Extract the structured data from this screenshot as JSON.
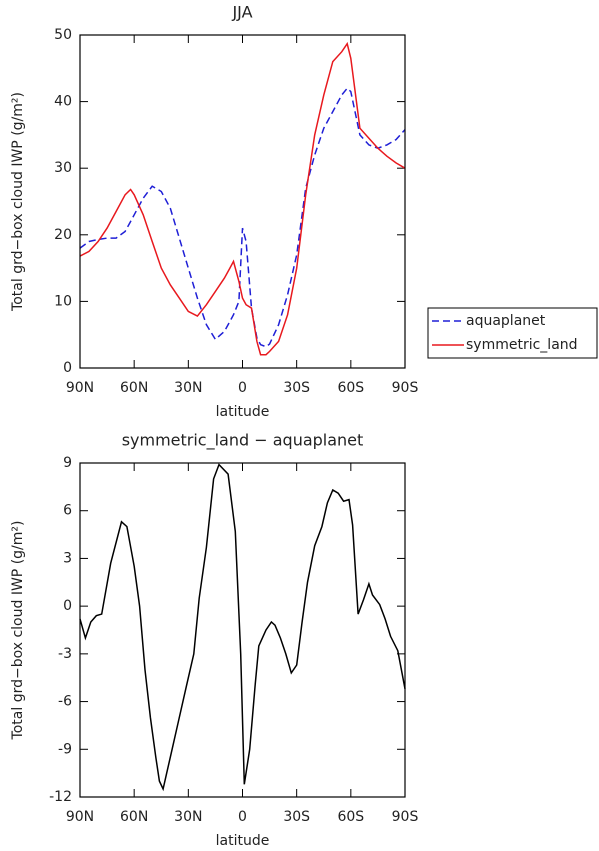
{
  "chart_data": [
    {
      "type": "line",
      "title": "JJA",
      "xlabel": "latitude",
      "ylabel": "Total grd−box cloud IWP (g/m²)",
      "x": [
        90,
        85,
        80,
        75,
        70,
        65,
        62,
        60,
        55,
        50,
        45,
        40,
        35,
        30,
        25,
        20,
        15,
        10,
        7,
        5,
        2,
        0,
        -2,
        -5,
        -8,
        -10,
        -13,
        -15,
        -20,
        -25,
        -30,
        -35,
        -40,
        -45,
        -50,
        -55,
        -58,
        -60,
        -65,
        -70,
        -75,
        -80,
        -85,
        -90
      ],
      "series": [
        {
          "name": "aquaplanet",
          "color": "#1f1fd6",
          "linestyle": "dashed",
          "values": [
            18,
            19,
            19.3,
            19.5,
            19.5,
            20.5,
            22,
            23,
            25.5,
            27.3,
            26.5,
            24,
            19.5,
            15,
            10.5,
            6.5,
            4.3,
            5.5,
            7,
            8,
            10,
            21,
            19,
            9,
            4.5,
            3.5,
            3.2,
            3.6,
            6.5,
            11,
            17,
            27,
            32,
            36,
            38.5,
            41,
            42,
            41.5,
            35,
            33.5,
            33,
            33.5,
            34.3,
            35.8
          ]
        },
        {
          "name": "symmetric_land",
          "color": "#e8191e",
          "linestyle": "solid",
          "values": [
            16.8,
            17.5,
            19,
            21,
            23.5,
            26,
            26.8,
            26,
            23,
            19,
            15,
            12.5,
            10.5,
            8.5,
            7.8,
            9.5,
            11.5,
            13.5,
            15,
            16,
            13,
            10.5,
            9.5,
            9,
            4,
            2,
            2,
            2.5,
            4,
            8,
            15,
            26,
            35,
            41,
            46,
            47.5,
            48.7,
            46.5,
            36,
            34.5,
            33,
            31.8,
            30.8,
            30
          ]
        }
      ],
      "xlim": [
        90,
        -90
      ],
      "xticks": [
        {
          "value": 90,
          "label": "90N"
        },
        {
          "value": 60,
          "label": "60N"
        },
        {
          "value": 30,
          "label": "30N"
        },
        0,
        {
          "value": -30,
          "label": "30S"
        },
        {
          "value": -60,
          "label": "60S"
        },
        {
          "value": -90,
          "label": "90S"
        }
      ],
      "ylim": [
        0,
        50
      ],
      "yticks": [
        0,
        10,
        20,
        30,
        40,
        50
      ],
      "legend": "right"
    },
    {
      "type": "line",
      "title": "symmetric_land − aquaplanet",
      "xlabel": "latitude",
      "ylabel": "Total grd−box cloud IWP (g/m²)",
      "x": [
        90,
        87,
        84,
        81,
        78,
        73,
        67,
        64,
        60,
        57,
        54,
        51,
        48,
        46,
        44,
        42,
        39,
        35,
        31,
        27,
        24,
        20,
        16,
        13,
        8,
        4,
        1,
        -1,
        -4,
        -7,
        -9,
        -13,
        -16,
        -18,
        -21,
        -24,
        -27,
        -30,
        -33,
        -36,
        -40,
        -44,
        -47,
        -50,
        -53,
        -56,
        -59,
        -61,
        -64,
        -67,
        -70,
        -72,
        -76,
        -79,
        -82,
        -86,
        -90
      ],
      "values": [
        -0.8,
        -2,
        -1,
        -0.6,
        -0.5,
        2.7,
        5.3,
        5,
        2.5,
        0,
        -4,
        -7,
        -9.5,
        -11,
        -11.5,
        -10.5,
        -9,
        -7,
        -5,
        -3,
        0.5,
        3.7,
        8,
        8.9,
        8.3,
        4.7,
        -3,
        -11.2,
        -9,
        -5,
        -2.5,
        -1.5,
        -1,
        -1.2,
        -2,
        -3,
        -4.2,
        -3.7,
        -1,
        1.5,
        3.8,
        5,
        6.5,
        7.3,
        7.1,
        6.6,
        6.7,
        5.1,
        -0.5,
        0.4,
        1.4,
        0.7,
        0.1,
        -0.8,
        -1.9,
        -2.8,
        -5.2
      ],
      "color": "#000000",
      "linestyle": "solid",
      "xlim": [
        90,
        -90
      ],
      "xticks": [
        {
          "value": 90,
          "label": "90N"
        },
        {
          "value": 60,
          "label": "60N"
        },
        {
          "value": 30,
          "label": "30N"
        },
        0,
        {
          "value": -30,
          "label": "30S"
        },
        {
          "value": -60,
          "label": "60S"
        },
        {
          "value": -90,
          "label": "90S"
        }
      ],
      "ylim": [
        -12,
        9
      ],
      "yticks": [
        -12,
        -9,
        -6,
        -3,
        0,
        3,
        6,
        9
      ]
    }
  ]
}
